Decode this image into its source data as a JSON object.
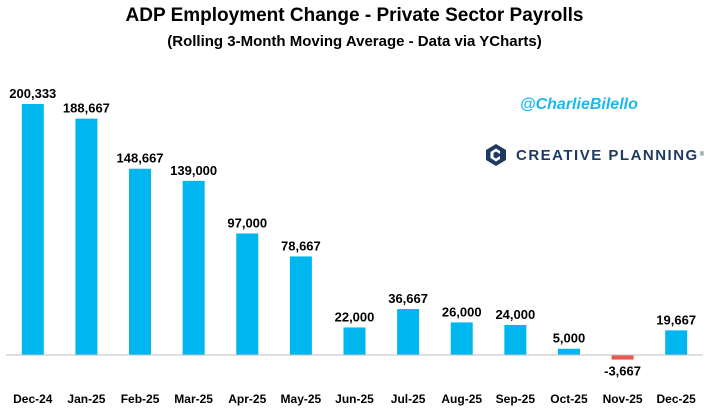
{
  "title": "ADP Employment Change - Private Sector Payrolls",
  "subtitle": "(Rolling 3-Month Moving Average - Data via YCharts)",
  "handle": "@CharlieBilello",
  "brand": {
    "name": "CREATIVE PLANNING",
    "trademark": "®"
  },
  "colors": {
    "positive": "#00b6ef",
    "negative": "#e8584f"
  },
  "chart_data": {
    "type": "bar",
    "title": "ADP Employment Change - Private Sector Payrolls",
    "subtitle": "(Rolling 3-Month Moving Average - Data via YCharts)",
    "xlabel": "",
    "ylabel": "",
    "categories": [
      "Dec-24",
      "Jan-25",
      "Feb-25",
      "Mar-25",
      "Apr-25",
      "May-25",
      "Jun-25",
      "Jul-25",
      "Aug-25",
      "Sep-25",
      "Oct-25",
      "Nov-25",
      "Dec-25"
    ],
    "values": [
      200333,
      188667,
      148667,
      139000,
      97000,
      78667,
      22000,
      36667,
      26000,
      24000,
      5000,
      -3667,
      19667
    ],
    "labels": [
      "200,333",
      "188,667",
      "148,667",
      "139,000",
      "97,000",
      "78,667",
      "22,000",
      "36,667",
      "26,000",
      "24,000",
      "5,000",
      "-3,667",
      "19,667"
    ],
    "grid": false,
    "legend": "none"
  }
}
